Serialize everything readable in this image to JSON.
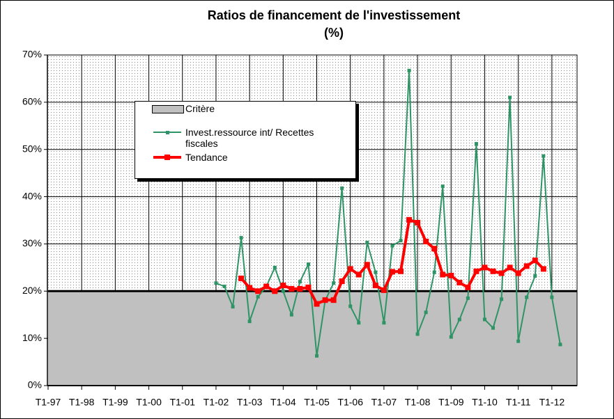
{
  "chart_data": {
    "type": "line",
    "title": "Ratios de financement de l'investissement",
    "subtitle": "(%)",
    "categories": [
      "T1-97",
      null,
      null,
      null,
      "T1-98",
      null,
      null,
      null,
      "T1-99",
      null,
      null,
      null,
      "T1-00",
      null,
      null,
      null,
      "T1-01",
      null,
      null,
      null,
      "T1-02",
      null,
      null,
      null,
      "T1-03",
      null,
      null,
      null,
      "T1-04",
      null,
      null,
      null,
      "T1-05",
      null,
      null,
      null,
      "T1-06",
      null,
      null,
      null,
      "T1-07",
      null,
      null,
      null,
      "T1-08",
      null,
      null,
      null,
      "T1-09",
      null,
      null,
      null,
      "T1-10",
      null,
      null,
      null,
      "T1-11",
      null,
      null,
      null,
      "T1-12",
      null,
      null,
      null
    ],
    "series": [
      {
        "name": "Critère",
        "type": "area",
        "color": "#c0c0c0",
        "values": [
          20,
          20,
          20,
          20,
          20,
          20,
          20,
          20,
          20,
          20,
          20,
          20,
          20,
          20,
          20,
          20,
          20,
          20,
          20,
          20,
          20,
          20,
          20,
          20,
          20,
          20,
          20,
          20,
          20,
          20,
          20,
          20,
          20,
          20,
          20,
          20,
          20,
          20,
          20,
          20,
          20,
          20,
          20,
          20,
          20,
          20,
          20,
          20,
          20,
          20,
          20,
          20,
          20,
          20,
          20,
          20,
          20,
          20,
          20,
          20,
          20,
          20,
          20,
          20
        ]
      },
      {
        "name": "Invest.ressource int/ Recettes fiscales",
        "type": "line",
        "color": "#2e9466",
        "values": [
          null,
          null,
          null,
          null,
          null,
          null,
          null,
          null,
          null,
          null,
          null,
          null,
          null,
          null,
          null,
          null,
          null,
          null,
          null,
          null,
          21.7,
          21,
          16.7,
          31.3,
          13.6,
          18.8,
          21,
          25,
          20,
          15,
          22,
          25.7,
          6.3,
          18,
          21.7,
          41.8,
          16.8,
          13.3,
          30.3,
          24,
          13.3,
          29.6,
          30.7,
          66.7,
          10.9,
          15.5,
          24,
          42.2,
          10.3,
          14,
          18.5,
          51.2,
          14,
          12.2,
          18.3,
          61,
          9.4,
          18.7,
          23.2,
          48.6,
          18.7,
          8.7,
          null,
          null
        ]
      },
      {
        "name": "Tendance",
        "type": "line",
        "color": "#ff0000",
        "values": [
          null,
          null,
          null,
          null,
          null,
          null,
          null,
          null,
          null,
          null,
          null,
          null,
          null,
          null,
          null,
          null,
          null,
          null,
          null,
          null,
          null,
          null,
          null,
          22.7,
          20.7,
          20,
          21,
          20,
          21.2,
          20.5,
          20.5,
          20.8,
          17.3,
          18.1,
          18.1,
          22.1,
          24.7,
          23.5,
          25.6,
          21.2,
          20.2,
          24.1,
          24.2,
          35.1,
          34.5,
          30.5,
          29,
          23.5,
          23.3,
          21.8,
          20.8,
          24.2,
          25,
          24.2,
          23.8,
          25,
          23.8,
          25.3,
          26.5,
          24.7,
          null,
          null,
          null,
          null
        ]
      }
    ],
    "ylim": [
      0,
      70
    ],
    "yticks": [
      {
        "value": 0,
        "label": "0%"
      },
      {
        "value": 10,
        "label": "10%"
      },
      {
        "value": 20,
        "label": "20%"
      },
      {
        "value": 30,
        "label": "30%"
      },
      {
        "value": 40,
        "label": "40%"
      },
      {
        "value": 50,
        "label": "50%"
      },
      {
        "value": 60,
        "label": "60%"
      },
      {
        "value": 70,
        "label": "70%"
      }
    ],
    "grid": true
  }
}
